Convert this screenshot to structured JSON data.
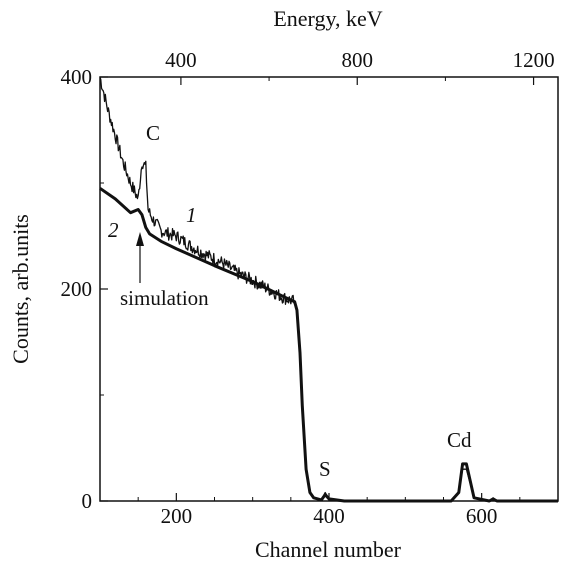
{
  "chart_data": {
    "type": "line",
    "xlabel": "Channel number",
    "ylabel": "Counts, arb.units",
    "x2label": "Energy, keV",
    "xlim": [
      100,
      700
    ],
    "ylim": [
      0,
      400
    ],
    "x_ticks": [
      "200",
      "400",
      "600"
    ],
    "y_ticks": [
      "0",
      "200",
      "400"
    ],
    "x2_ticks": [
      "400",
      "800",
      "1200"
    ],
    "grid": false,
    "legend": "none",
    "annotations": {
      "C": "C",
      "S": "S",
      "Cd": "Cd",
      "series1": "1",
      "series2": "2",
      "simulation": "simulation"
    },
    "series": [
      {
        "name": "1",
        "kind": "experimental (noisy)",
        "x": [
          100,
          110,
          120,
          130,
          140,
          150,
          155,
          160,
          163,
          166,
          170,
          180,
          190,
          200,
          220,
          240,
          260,
          280,
          300,
          320,
          340,
          355,
          358,
          362,
          365,
          370,
          375,
          380,
          390,
          395,
          400,
          420,
          500,
          560,
          570,
          575,
          580,
          590,
          610,
          615,
          620,
          630,
          700
        ],
        "y": [
          400,
          370,
          345,
          320,
          300,
          285,
          320,
          315,
          275,
          270,
          265,
          255,
          252,
          250,
          240,
          232,
          225,
          215,
          208,
          200,
          192,
          188,
          180,
          140,
          90,
          30,
          8,
          3,
          1,
          8,
          2,
          0,
          0,
          0,
          8,
          30,
          30,
          3,
          0,
          3,
          0,
          0,
          0
        ]
      },
      {
        "name": "2",
        "kind": "simulation (smooth)",
        "x": [
          100,
          120,
          140,
          150,
          155,
          160,
          165,
          180,
          200,
          250,
          300,
          340,
          355,
          358,
          362,
          365,
          370,
          375,
          380,
          390,
          395,
          400,
          420,
          500,
          560,
          570,
          575,
          580,
          590,
          610,
          615,
          620,
          630,
          700
        ],
        "y": [
          295,
          285,
          272,
          275,
          270,
          258,
          252,
          245,
          238,
          222,
          207,
          193,
          188,
          180,
          140,
          90,
          30,
          8,
          3,
          1,
          6,
          2,
          0,
          0,
          0,
          8,
          35,
          35,
          3,
          0,
          2,
          0,
          0,
          0
        ]
      }
    ]
  }
}
